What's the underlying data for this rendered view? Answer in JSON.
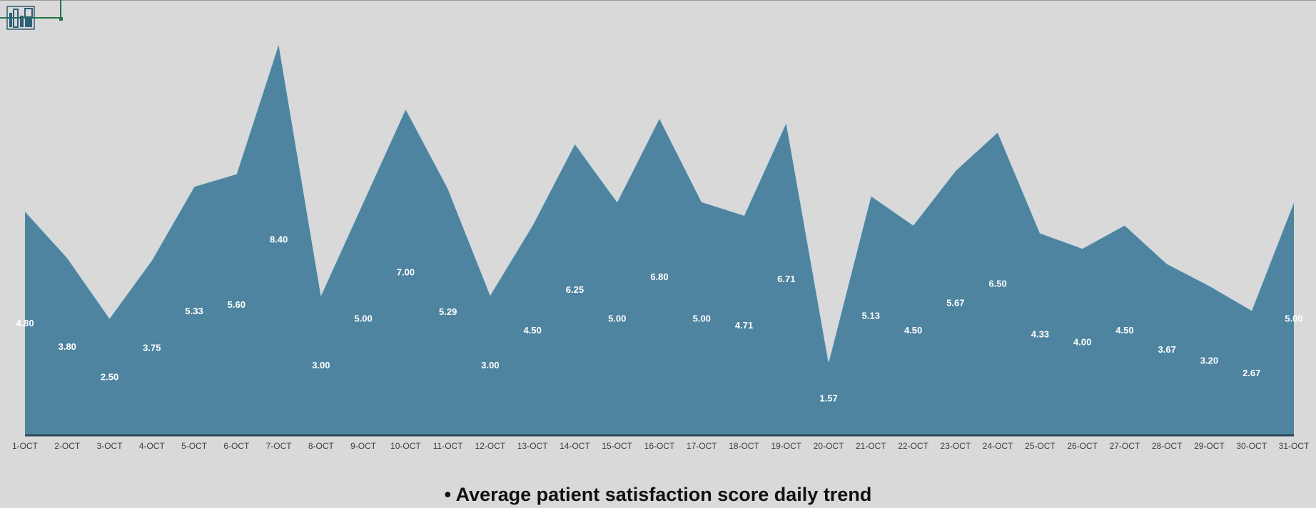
{
  "caption": "• Average patient satisfaction score daily trend",
  "icons": {
    "logo": "bar-chart-logo-icon"
  },
  "colors": {
    "background": "#d9d9d9",
    "area_fill": "#4e849f",
    "area_edge": "#c9dae3",
    "baseline": "#2f4a58",
    "value_label": "#ffffff",
    "tick_label": "#404040",
    "selection": "#217346"
  },
  "chart_data": {
    "type": "area",
    "categories": [
      "1-OCT",
      "2-OCT",
      "3-OCT",
      "4-OCT",
      "5-OCT",
      "6-OCT",
      "7-OCT",
      "8-OCT",
      "9-OCT",
      "10-OCT",
      "11-OCT",
      "12-OCT",
      "13-OCT",
      "14-OCT",
      "15-OCT",
      "16-OCT",
      "17-OCT",
      "18-OCT",
      "19-OCT",
      "20-OCT",
      "21-OCT",
      "22-OCT",
      "23-OCT",
      "24-OCT",
      "25-OCT",
      "26-OCT",
      "27-OCT",
      "28-OCT",
      "29-OCT",
      "30-OCT",
      "31-OCT"
    ],
    "values": [
      4.8,
      3.8,
      2.5,
      3.75,
      5.33,
      5.6,
      8.4,
      3.0,
      5.0,
      7.0,
      5.29,
      3.0,
      4.5,
      6.25,
      5.0,
      6.8,
      5.0,
      4.71,
      6.71,
      1.57,
      5.13,
      4.5,
      5.67,
      6.5,
      4.33,
      4.0,
      4.5,
      3.67,
      3.2,
      2.67,
      5.0
    ],
    "data_labels": [
      "4.80",
      "3.80",
      "2.50",
      "3.75",
      "5.33",
      "5.60",
      "8.40",
      "3.00",
      "5.00",
      "7.00",
      "5.29",
      "3.00",
      "4.50",
      "6.25",
      "5.00",
      "6.80",
      "5.00",
      "4.71",
      "6.71",
      "1.57",
      "5.13",
      "4.50",
      "5.67",
      "6.50",
      "4.33",
      "4.00",
      "4.50",
      "3.67",
      "3.20",
      "2.67",
      "5.00"
    ],
    "ylim": [
      0,
      8.6
    ],
    "grid": false,
    "legend": "none",
    "title": "",
    "xlabel": "",
    "ylabel": ""
  }
}
